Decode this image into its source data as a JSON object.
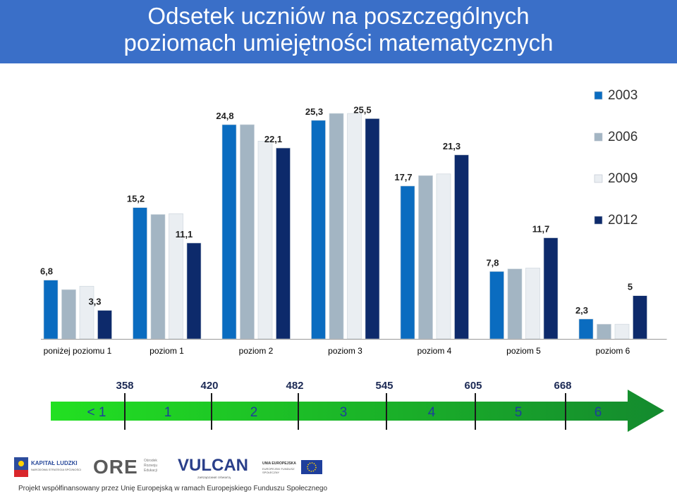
{
  "title_line1": "Odsetek uczniów na poszczególnych",
  "title_line2": "poziomach umiejętności matematycznych",
  "chart_data": {
    "type": "bar",
    "categories": [
      "poniżej poziomu 1",
      "poziom 1",
      "poziom 2",
      "poziom 3",
      "poziom 4",
      "poziom 5",
      "poziom 6"
    ],
    "series": [
      {
        "name": "2003",
        "color": "#0a6cc0",
        "values": [
          6.8,
          15.2,
          24.8,
          25.3,
          17.7,
          7.8,
          2.3
        ]
      },
      {
        "name": "2006",
        "color": "#a3b5c3",
        "values": [
          5.7,
          14.4,
          24.8,
          26.1,
          18.9,
          8.1,
          1.7
        ]
      },
      {
        "name": "2009",
        "color": "#eaeef2",
        "values": [
          6.1,
          14.5,
          22.9,
          26.1,
          19.1,
          8.2,
          1.7
        ]
      },
      {
        "name": "2012",
        "color": "#0d2a6b",
        "values": [
          3.3,
          11.1,
          22.1,
          25.5,
          21.3,
          11.7,
          5.0
        ]
      }
    ],
    "data_labels": [
      {
        "category": 0,
        "series": 0,
        "text": "6,8"
      },
      {
        "category": 0,
        "series": 3,
        "text": "3,3"
      },
      {
        "category": 1,
        "series": 0,
        "text": "15,2"
      },
      {
        "category": 1,
        "series": 3,
        "text": "11,1"
      },
      {
        "category": 2,
        "series": 0,
        "text": "24,8"
      },
      {
        "category": 2,
        "series": 3,
        "text": "22,1"
      },
      {
        "category": 3,
        "series": 0,
        "text": "25,3"
      },
      {
        "category": 3,
        "series": 3,
        "text": "25,5"
      },
      {
        "category": 4,
        "series": 0,
        "text": "17,7"
      },
      {
        "category": 4,
        "series": 3,
        "text": "21,3"
      },
      {
        "category": 5,
        "series": 0,
        "text": "7,8"
      },
      {
        "category": 5,
        "series": 3,
        "text": "11,7"
      },
      {
        "category": 6,
        "series": 0,
        "text": "2,3"
      },
      {
        "category": 6,
        "series": 3,
        "text": "5"
      }
    ],
    "legend_position": "right",
    "ylim": [
      0,
      27
    ],
    "grid": false
  },
  "scale": {
    "thresholds": [
      "358",
      "420",
      "482",
      "545",
      "605",
      "668"
    ],
    "levels": [
      "< 1",
      "1",
      "2",
      "3",
      "4",
      "5",
      "6"
    ]
  },
  "footer": {
    "logo_kl": "KAPITAŁ LUDZKI",
    "logo_kl_sub": "NARODOWA STRATEGIA SPÓJNOŚCI",
    "logo_ore": "ORE",
    "logo_ore_sub": "Ośrodek Rozwoju Edukacji",
    "logo_vulcan": "VULCAN",
    "logo_vulcan_sub": "ZARZĄDZANIE OŚWIATĄ",
    "logo_eu": "UNIA EUROPEJSKA",
    "logo_eu_sub": "EUROPEJSKI FUNDUSZ SPOŁECZNY",
    "funding_text": "Projekt współfinansowany przez Unię Europejską w ramach Europejskiego Funduszu Społecznego"
  }
}
